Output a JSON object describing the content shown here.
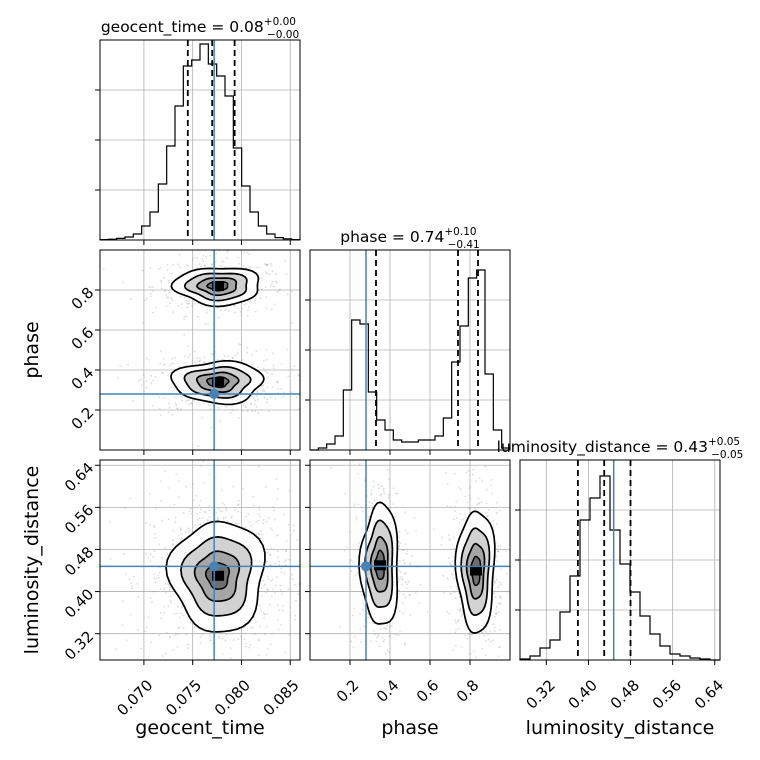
{
  "chart_data": {
    "type": "corner",
    "parameters": [
      {
        "key": "geocent_time",
        "label": "geocent_time",
        "median": "0.08",
        "plus": "+0.00",
        "minus": "−0.00",
        "range": [
          0.0655,
          0.086
        ],
        "truth": 0.0772,
        "quantiles": [
          0.0745,
          0.077,
          0.0793
        ],
        "ticks": [
          "0.070",
          "0.075",
          "0.080",
          "0.085"
        ],
        "tick_values": [
          0.07,
          0.075,
          0.08,
          0.085
        ]
      },
      {
        "key": "phase",
        "label": "phase",
        "median": "0.74",
        "plus": "+0.10",
        "minus": "−0.41",
        "range": [
          0.0,
          1.0
        ],
        "truth": 0.28,
        "quantiles": [
          0.33,
          0.74,
          0.84
        ],
        "ticks": [
          "0.2",
          "0.4",
          "0.6",
          "0.8"
        ],
        "tick_values": [
          0.2,
          0.4,
          0.6,
          0.8
        ]
      },
      {
        "key": "luminosity_distance",
        "label": "luminosity_distance",
        "median": "0.43",
        "plus": "+0.05",
        "minus": "−0.05",
        "range": [
          0.27,
          0.65
        ],
        "truth": 0.448,
        "quantiles": [
          0.38,
          0.43,
          0.48
        ],
        "ticks": [
          "0.32",
          "0.40",
          "0.48",
          "0.56",
          "0.64"
        ],
        "tick_values": [
          0.32,
          0.4,
          0.48,
          0.56,
          0.64
        ]
      }
    ],
    "histograms": {
      "geocent_time": [
        0.002,
        0.004,
        0.008,
        0.015,
        0.03,
        0.07,
        0.14,
        0.28,
        0.47,
        0.67,
        0.87,
        0.9,
        0.98,
        0.88,
        0.82,
        0.72,
        0.46,
        0.27,
        0.14,
        0.07,
        0.03,
        0.012,
        0.006,
        0.002
      ],
      "phase": [
        0.0,
        0.01,
        0.03,
        0.07,
        0.3,
        0.65,
        0.63,
        0.29,
        0.15,
        0.1,
        0.05,
        0.04,
        0.04,
        0.05,
        0.05,
        0.07,
        0.16,
        0.44,
        0.62,
        0.86,
        0.9,
        0.38,
        0.1,
        0.01
      ],
      "luminosity_distance": [
        0.005,
        0.02,
        0.06,
        0.1,
        0.24,
        0.42,
        0.7,
        0.81,
        0.92,
        0.65,
        0.48,
        0.34,
        0.22,
        0.13,
        0.07,
        0.03,
        0.02,
        0.01,
        0.005,
        0.0
      ]
    },
    "modes_2d": {
      "geocent_time_phase": [
        {
          "x": 0.0776,
          "y": 0.82,
          "sx": 0.0021,
          "sy": 0.045,
          "w": 0.5
        },
        {
          "x": 0.0776,
          "y": 0.34,
          "sx": 0.0022,
          "sy": 0.05,
          "w": 0.5
        }
      ],
      "geocent_time_luminosity_distance": [
        {
          "x": 0.0776,
          "y": 0.43,
          "sx": 0.0023,
          "sy": 0.05,
          "w": 1.0
        }
      ],
      "phase_luminosity_distance": [
        {
          "x": 0.35,
          "y": 0.45,
          "sx": 0.045,
          "sy": 0.055,
          "w": 0.45
        },
        {
          "x": 0.83,
          "y": 0.44,
          "sx": 0.045,
          "sy": 0.055,
          "w": 0.55
        }
      ]
    },
    "truth_color": "#4682b4",
    "grid": true,
    "legend": "none"
  }
}
